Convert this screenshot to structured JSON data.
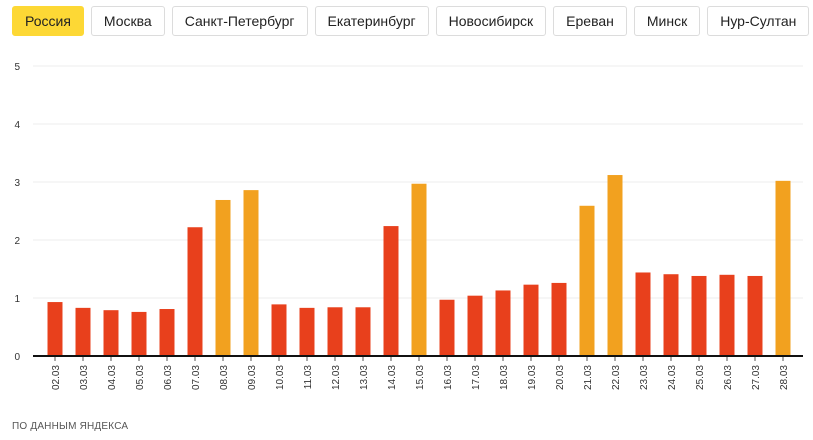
{
  "tabs": [
    {
      "label": "Россия",
      "active": true
    },
    {
      "label": "Москва",
      "active": false
    },
    {
      "label": "Санкт-Петербург",
      "active": false
    },
    {
      "label": "Екатеринбург",
      "active": false
    },
    {
      "label": "Новосибирск",
      "active": false
    },
    {
      "label": "Ереван",
      "active": false
    },
    {
      "label": "Минск",
      "active": false
    },
    {
      "label": "Нур-Султан",
      "active": false
    }
  ],
  "source": "ПО ДАННЫМ ЯНДЕКСА",
  "colors": {
    "weekday_bar": "#e8401c",
    "weekend_bar": "#f2a11f",
    "active_tab": "#fdd835",
    "gridline": "#eeeeee",
    "baseline": "#111111"
  },
  "chart_data": {
    "type": "bar",
    "title": "",
    "xlabel": "",
    "ylabel": "",
    "ylim": [
      0,
      5
    ],
    "yticks": [
      0,
      1,
      2,
      3,
      4,
      5
    ],
    "grid": true,
    "categories": [
      "02.03",
      "03.03",
      "04.03",
      "05.03",
      "06.03",
      "07.03",
      "08.03",
      "09.03",
      "10.03",
      "11.03",
      "12.03",
      "13.03",
      "14.03",
      "15.03",
      "16.03",
      "17.03",
      "18.03",
      "19.03",
      "20.03",
      "21.03",
      "22.03",
      "23.03",
      "24.03",
      "25.03",
      "26.03",
      "27.03",
      "28.03"
    ],
    "values": [
      0.93,
      0.83,
      0.79,
      0.76,
      0.81,
      2.22,
      2.69,
      2.86,
      0.89,
      0.83,
      0.84,
      0.84,
      2.24,
      2.97,
      0.97,
      1.04,
      1.13,
      1.23,
      1.26,
      2.59,
      3.12,
      1.44,
      1.41,
      1.38,
      1.4,
      1.38,
      3.02
    ],
    "highlighted": [
      false,
      false,
      false,
      false,
      false,
      false,
      true,
      true,
      false,
      false,
      false,
      false,
      false,
      true,
      false,
      false,
      false,
      false,
      false,
      true,
      true,
      false,
      false,
      false,
      false,
      false,
      true
    ]
  }
}
